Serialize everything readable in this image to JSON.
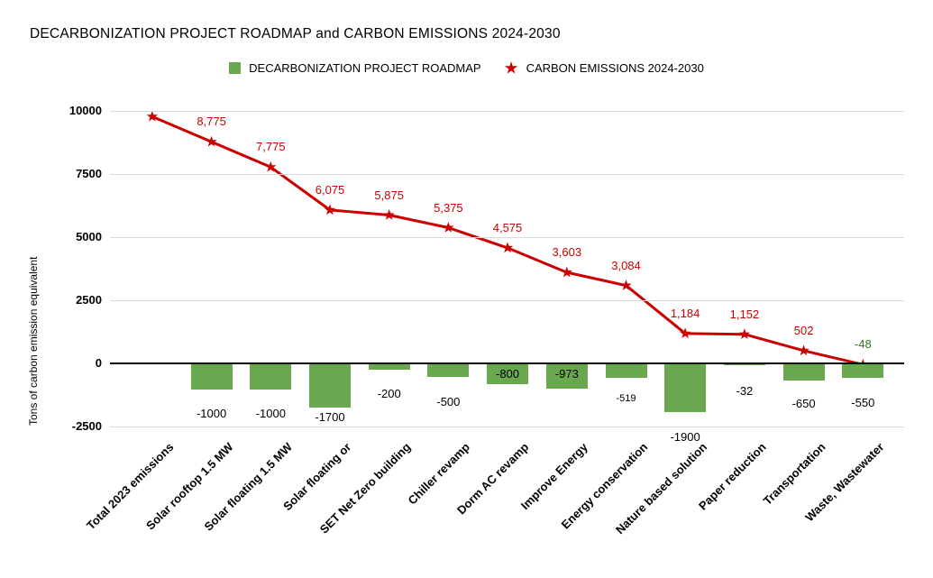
{
  "title": "DECARBONIZATION PROJECT ROADMAP and CARBON EMISSIONS 2024-2030",
  "legend": [
    {
      "label": "DECARBONIZATION PROJECT ROADMAP",
      "marker": "square",
      "color": "#6aa84f"
    },
    {
      "label": "CARBON EMISSIONS 2024-2030",
      "marker": "star",
      "color": "#cc0000"
    }
  ],
  "y_axis": {
    "title": "Tons of carbon emission equivalent",
    "ticks": [
      "10000",
      "7500",
      "5000",
      "2500",
      "0",
      "-2500"
    ]
  },
  "colors": {
    "bar_green": "#6aa84f",
    "line_red": "#cc0000",
    "final_label_green": "#38761d",
    "gridline_gray": "#d9d9d9",
    "zero_axis_black": "#000000"
  },
  "chart_data": {
    "type": "combo",
    "title": "DECARBONIZATION PROJECT ROADMAP and CARBON EMISSIONS 2024-2030",
    "ylabel": "Tons of carbon emission equivalent",
    "ylim": [
      -2500,
      10000
    ],
    "grid": "horizontal",
    "legend_position": "top-center",
    "categories": [
      "Total 2023 emissions",
      "Solar rooftop 1.5 MW",
      "Solar floating 1.5 MW",
      "Solar floating or",
      "SET Net Zero building",
      "Chiller revamp",
      "Dorm AC revamp",
      "Improve Energy",
      "Energy conservation",
      "Nature based solution",
      "Paper reduction",
      "Transportation",
      "Waste, Wastewater"
    ],
    "series": [
      {
        "name": "DECARBONIZATION PROJECT ROADMAP",
        "type": "bar",
        "color": "#6aa84f",
        "values": [
          null,
          -1000,
          -1000,
          -1700,
          -200,
          -500,
          -800,
          -973,
          -519,
          -1900,
          -32,
          -650,
          -550
        ],
        "labels": [
          "",
          "-1000",
          "-1000",
          "-1700",
          "-200",
          "-500",
          "-800",
          "-973",
          "-519",
          "-1900",
          "-32",
          "-650",
          "-550"
        ]
      },
      {
        "name": "CARBON EMISSIONS 2024-2030",
        "type": "line",
        "marker": "star",
        "color": "#cc0000",
        "values": [
          9775,
          8775,
          7775,
          6075,
          5875,
          5375,
          4575,
          3603,
          3084,
          1184,
          1152,
          502,
          -48
        ],
        "labels": [
          "",
          "8,775",
          "7,775",
          "6,075",
          "5,875",
          "5,375",
          "4,575",
          "3,603",
          "3,084",
          "1,184",
          "1,152",
          "502",
          "-48"
        ],
        "final_label_color": "#38761d"
      }
    ]
  }
}
